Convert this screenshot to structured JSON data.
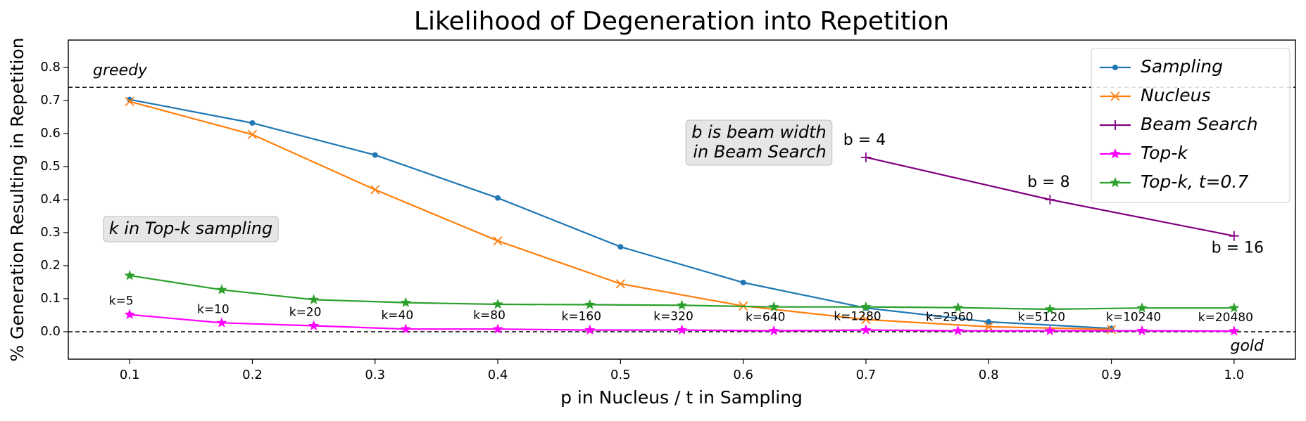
{
  "chart_data": {
    "type": "line",
    "title": "Likelihood of Degeneration into Repetition",
    "x_label": "p in Nucleus / t in Sampling",
    "y_label": "% Generation Resulting in Repetition",
    "xlim": [
      0.05,
      1.05
    ],
    "ylim": [
      -0.083,
      0.883
    ],
    "xticks": [
      0.1,
      0.2,
      0.3,
      0.4,
      0.5,
      0.6,
      0.7,
      0.8,
      0.9,
      {
        "value": 1,
        "label": "1.0"
      }
    ],
    "yticks": [
      {
        "value": 0,
        "label": "0.0"
      },
      0.1,
      0.2,
      0.3,
      0.4,
      0.5,
      0.6,
      0.7,
      0.8
    ],
    "legend": "upper right",
    "hlines": [
      {
        "value": 0.74,
        "label": "greedy"
      },
      {
        "value": 0,
        "label": "gold"
      }
    ],
    "series": [
      {
        "name": "Sampling",
        "color": "#1f77b4",
        "marker": "dot",
        "x": [
          0.1,
          0.2,
          0.3,
          0.4,
          0.5,
          0.6,
          0.7,
          0.8,
          0.9
        ],
        "values": [
          0.703,
          0.632,
          0.535,
          0.405,
          0.257,
          0.149,
          0.072,
          0.03,
          0.01
        ]
      },
      {
        "name": "Nucleus",
        "color": "#ff7f0e",
        "marker": "x",
        "x": [
          0.1,
          0.2,
          0.3,
          0.4,
          0.5,
          0.6,
          0.7,
          0.8,
          0.9
        ],
        "values": [
          0.697,
          0.597,
          0.43,
          0.275,
          0.145,
          0.078,
          0.037,
          0.015,
          0.007
        ]
      },
      {
        "name": "Beam Search",
        "color": "#800080",
        "marker": "plus",
        "x": [
          0.7,
          0.85,
          1
        ],
        "values": [
          0.528,
          0.4,
          0.29
        ],
        "point_labels": [
          "b = 4",
          "b = 8",
          "b = 16"
        ]
      },
      {
        "name": "Top-k",
        "color": "#ff00ff",
        "marker": "star",
        "x": [
          0.1,
          0.175,
          0.25,
          0.325,
          0.4,
          0.475,
          0.55,
          0.625,
          0.7,
          0.775,
          0.85,
          0.925,
          1
        ],
        "values": [
          0.052,
          0.027,
          0.018,
          0.008,
          0.008,
          0.005,
          0.005,
          0.003,
          0.005,
          0.003,
          0.003,
          0.003,
          0.002
        ],
        "point_labels": [
          "k=5",
          "k=10",
          "k=20",
          "k=40",
          "k=80",
          "k=160",
          "k=320",
          "k=640",
          "k=1280",
          "k=2560",
          "k=5120",
          "k=10240",
          "k=20480"
        ]
      },
      {
        "name": "Top-k, t=0.7",
        "color": "#2ca02c",
        "marker": "star",
        "x": [
          0.1,
          0.175,
          0.25,
          0.325,
          0.4,
          0.475,
          0.55,
          0.625,
          0.7,
          0.775,
          0.85,
          0.925,
          1
        ],
        "values": [
          0.17,
          0.127,
          0.097,
          0.088,
          0.083,
          0.082,
          0.08,
          0.075,
          0.075,
          0.073,
          0.068,
          0.072,
          0.072
        ]
      }
    ],
    "annotations": [
      {
        "lines": [
          "k in Top-k sampling"
        ]
      },
      {
        "lines": [
          "b is beam width",
          "in Beam Search"
        ]
      }
    ]
  }
}
